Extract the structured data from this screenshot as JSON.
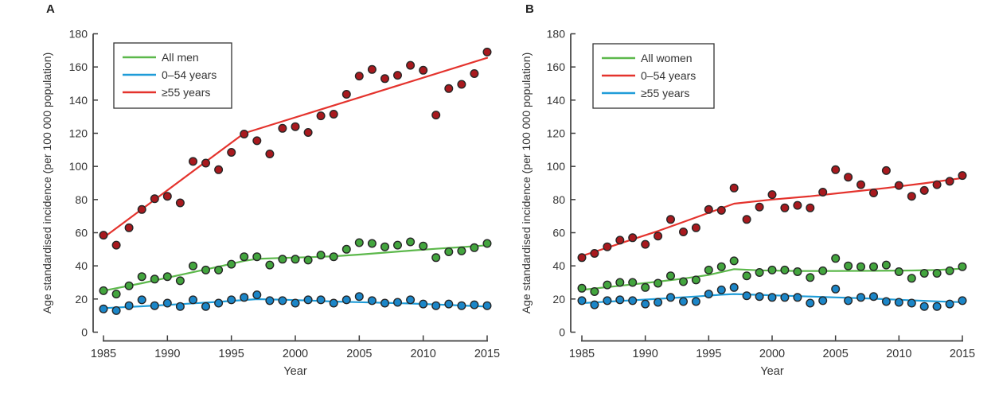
{
  "colors": {
    "green_line": "#5CB84B",
    "green_dot": "#43A53E",
    "blue_line": "#1F9CD8",
    "blue_dot": "#1B86C8",
    "red_line": "#E4332D",
    "red_dot": "#A8191E",
    "axis": "#3D3D3D",
    "text": "#333333",
    "dot_stroke": "#262626"
  },
  "chart_data": [
    {
      "type": "scatter",
      "panel_label": "A",
      "xlabel": "Year",
      "ylabel": "Age standardised incidence (per 100 000 population)",
      "xlim": [
        1985,
        2015
      ],
      "ylim": [
        0,
        180
      ],
      "x_ticks": [
        1985,
        1990,
        1995,
        2000,
        2005,
        2010,
        2015
      ],
      "y_ticks": [
        0,
        20,
        40,
        60,
        80,
        100,
        120,
        140,
        160,
        180
      ],
      "grid": false,
      "legend_position": "upper-left",
      "years": [
        1985,
        1986,
        1987,
        1988,
        1989,
        1990,
        1991,
        1992,
        1993,
        1994,
        1995,
        1996,
        1997,
        1998,
        1999,
        2000,
        2001,
        2002,
        2003,
        2004,
        2005,
        2006,
        2007,
        2008,
        2009,
        2010,
        2011,
        2012,
        2013,
        2014,
        2015
      ],
      "series": [
        {
          "name": "All men",
          "color": "green",
          "points": [
            25,
            23,
            28,
            33.5,
            32,
            33.5,
            31,
            40,
            37.5,
            37.5,
            41,
            45.5,
            45.5,
            40.5,
            44,
            44,
            43.5,
            46.5,
            45.5,
            50,
            54,
            53.5,
            51.5,
            52.5,
            54.5,
            52,
            45,
            48.5,
            49,
            51,
            53.5
          ],
          "trend": [
            [
              1985,
              25
            ],
            [
              1988,
              29.5
            ],
            [
              1991,
              34.5
            ],
            [
              1994,
              39.5
            ],
            [
              1996,
              43
            ],
            [
              1997,
              44.2
            ],
            [
              1999,
              44.8
            ],
            [
              2001,
              45.2
            ],
            [
              2003,
              45.8
            ],
            [
              2005,
              46.8
            ],
            [
              2007,
              48
            ],
            [
              2009,
              49.2
            ],
            [
              2011,
              50.3
            ],
            [
              2013,
              51.3
            ],
            [
              2015,
              52.4
            ]
          ]
        },
        {
          "name": "0–54 years",
          "color": "blue",
          "points": [
            14,
            13,
            16,
            19.5,
            16,
            17.5,
            15.5,
            19.5,
            15.5,
            17.5,
            19.5,
            21,
            22.5,
            19,
            19,
            17.5,
            19.5,
            19.5,
            17.5,
            19.5,
            21.5,
            19,
            17.5,
            18,
            19.5,
            17,
            16,
            17,
            16,
            16.5,
            16
          ],
          "trend": [
            [
              1985,
              14.5
            ],
            [
              1988,
              15.6
            ],
            [
              1991,
              16.9
            ],
            [
              1994,
              18.3
            ],
            [
              1996,
              19.4
            ],
            [
              1997,
              19.9
            ],
            [
              1999,
              19.6
            ],
            [
              2001,
              19.1
            ],
            [
              2003,
              18.5
            ],
            [
              2005,
              18.1
            ],
            [
              2007,
              17.7
            ],
            [
              2009,
              17.3
            ],
            [
              2011,
              16.7
            ],
            [
              2013,
              16.1
            ],
            [
              2015,
              15.4
            ]
          ]
        },
        {
          "name": "≥55 years",
          "color": "red",
          "points": [
            58.5,
            52.5,
            63,
            74,
            80.5,
            82,
            78,
            103,
            102,
            98,
            108.5,
            119.5,
            115.5,
            107.5,
            123,
            124,
            120.5,
            130.5,
            131.5,
            143.5,
            154.5,
            158.5,
            153,
            155,
            161,
            158,
            131,
            147,
            149.5,
            156,
            169
          ],
          "trend": [
            [
              1985,
              57
            ],
            [
              1996,
              120
            ],
            [
              2015,
              165.5
            ]
          ]
        }
      ]
    },
    {
      "type": "scatter",
      "panel_label": "B",
      "xlabel": "Year",
      "ylabel": "Age standardised incidence (per 100 000 population)",
      "xlim": [
        1985,
        2015
      ],
      "ylim": [
        0,
        180
      ],
      "x_ticks": [
        1985,
        1990,
        1995,
        2000,
        2005,
        2010,
        2015
      ],
      "y_ticks": [
        0,
        20,
        40,
        60,
        80,
        100,
        120,
        140,
        160,
        180
      ],
      "grid": false,
      "legend_position": "upper-left",
      "years": [
        1985,
        1986,
        1987,
        1988,
        1989,
        1990,
        1991,
        1992,
        1993,
        1994,
        1995,
        1996,
        1997,
        1998,
        1999,
        2000,
        2001,
        2002,
        2003,
        2004,
        2005,
        2006,
        2007,
        2008,
        2009,
        2010,
        2011,
        2012,
        2013,
        2014,
        2015
      ],
      "series": [
        {
          "name": "All women",
          "color": "green",
          "points": [
            26.5,
            24.5,
            28.5,
            30,
            30,
            27,
            29.5,
            34,
            30.5,
            31.5,
            37.5,
            39.5,
            43,
            34,
            36,
            37.5,
            37.5,
            36.5,
            33,
            37,
            44.5,
            40,
            39.5,
            39.5,
            40.5,
            36.5,
            32.5,
            35.5,
            35.5,
            37,
            39.5
          ],
          "trend": [
            [
              1985,
              25.5
            ],
            [
              1988,
              28
            ],
            [
              1991,
              30.5
            ],
            [
              1993,
              32.3
            ],
            [
              1995,
              34.5
            ],
            [
              1997,
              38
            ],
            [
              1999,
              37.3
            ],
            [
              2002,
              36.9
            ],
            [
              2005,
              36.9
            ],
            [
              2008,
              37
            ],
            [
              2011,
              37.2
            ],
            [
              2013,
              37.5
            ],
            [
              2015,
              38.3
            ]
          ]
        },
        {
          "name": "0–54 years",
          "color": "red",
          "points": [
            45,
            47.5,
            51.5,
            55.5,
            57,
            53,
            58,
            68,
            60.5,
            63,
            74,
            73.5,
            87,
            68,
            75.5,
            83,
            75,
            76.5,
            75,
            84.5,
            98,
            93.5,
            89,
            84,
            97.5,
            88.5,
            82,
            85.5,
            89,
            91,
            94.5
          ],
          "trend": [
            [
              1985,
              46
            ],
            [
              1987,
              51
            ],
            [
              1989,
              56
            ],
            [
              1991,
              61
            ],
            [
              1993,
              66.5
            ],
            [
              1995,
              72
            ],
            [
              1997,
              77.5
            ],
            [
              2000,
              80
            ],
            [
              2003,
              82
            ],
            [
              2006,
              84.5
            ],
            [
              2009,
              87
            ],
            [
              2012,
              89.8
            ],
            [
              2015,
              93
            ]
          ]
        },
        {
          "name": "≥55 years",
          "color": "blue",
          "points": [
            19,
            16.5,
            19,
            19.5,
            19,
            17,
            18,
            21,
            18.5,
            18.5,
            23,
            25.5,
            27,
            22,
            21.5,
            21,
            21,
            21,
            17.5,
            19,
            26,
            19,
            21,
            21.5,
            18.5,
            18,
            17.5,
            15.5,
            15.5,
            17,
            19
          ],
          "trend": [
            [
              1985,
              17.5
            ],
            [
              1988,
              18.8
            ],
            [
              1991,
              20.1
            ],
            [
              1994,
              21.5
            ],
            [
              1996,
              22.6
            ],
            [
              1997,
              23
            ],
            [
              1999,
              22.5
            ],
            [
              2001,
              22
            ],
            [
              2003,
              21.5
            ],
            [
              2005,
              21
            ],
            [
              2008,
              20.2
            ],
            [
              2011,
              19.2
            ],
            [
              2013,
              18.6
            ],
            [
              2015,
              18.1
            ]
          ]
        }
      ]
    }
  ]
}
